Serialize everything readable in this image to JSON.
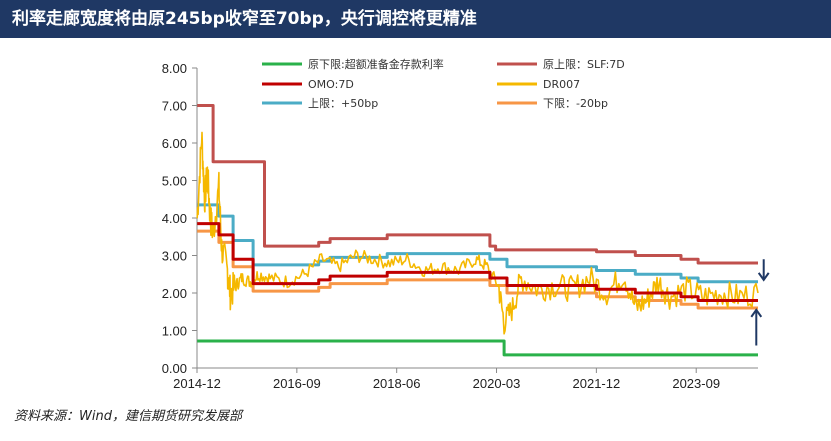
{
  "page": {
    "title": "利率走廊宽度将由原245bp收窄至70bp，央行调控将更精准",
    "source": "资料来源：Wind，建信期货研究发展部"
  },
  "chart_data": {
    "type": "line",
    "title": "利率走廊宽度将由原245bp收窄至70bp，央行调控将更精准",
    "xlabel": "",
    "ylabel": "",
    "ylim": [
      0,
      8
    ],
    "xlim": [
      2014.917,
      2024.75
    ],
    "yticks": [
      "0.00",
      "1.00",
      "2.00",
      "3.00",
      "4.00",
      "5.00",
      "6.00",
      "7.00",
      "8.00"
    ],
    "xticks": [
      {
        "label": "2014-12",
        "x": 2014.917
      },
      {
        "label": "2016-09",
        "x": 2016.667
      },
      {
        "label": "2018-06",
        "x": 2018.417
      },
      {
        "label": "2020-03",
        "x": 2020.167
      },
      {
        "label": "2021-12",
        "x": 2021.917
      },
      {
        "label": "2023-09",
        "x": 2023.667
      }
    ],
    "grid": false,
    "legend_position": "top",
    "series": [
      {
        "name": "原下限:超额准备金存款利率",
        "color": "#2ab14a",
        "x": [
          2014.92,
          2020.3,
          2020.3,
          2024.75
        ],
        "y": [
          0.72,
          0.72,
          0.35,
          0.35
        ]
      },
      {
        "name": "原上限：SLF:7D",
        "color": "#c0504d",
        "x": [
          2014.92,
          2015.2,
          2015.2,
          2015.55,
          2015.55,
          2016.1,
          2016.1,
          2017.05,
          2017.05,
          2017.25,
          2017.25,
          2018.25,
          2018.25,
          2020.05,
          2020.05,
          2020.15,
          2020.15,
          2021.92,
          2021.92,
          2022.6,
          2022.6,
          2023.4,
          2023.4,
          2023.7,
          2023.7,
          2024.75
        ],
        "y": [
          7.0,
          7.0,
          5.5,
          5.5,
          5.5,
          5.5,
          3.25,
          3.25,
          3.35,
          3.35,
          3.45,
          3.45,
          3.55,
          3.55,
          3.25,
          3.25,
          3.15,
          3.15,
          3.1,
          3.1,
          3.0,
          3.0,
          2.9,
          2.9,
          2.8,
          2.8
        ]
      },
      {
        "name": "OMO:7D",
        "color": "#c00000",
        "x": [
          2014.92,
          2015.3,
          2015.3,
          2015.55,
          2015.55,
          2015.9,
          2015.9,
          2017.05,
          2017.05,
          2017.25,
          2017.25,
          2018.25,
          2018.25,
          2020.05,
          2020.05,
          2020.35,
          2020.35,
          2021.92,
          2021.92,
          2022.6,
          2022.6,
          2023.4,
          2023.4,
          2023.7,
          2023.7,
          2024.75
        ],
        "y": [
          3.85,
          3.85,
          3.55,
          3.55,
          2.9,
          2.9,
          2.25,
          2.25,
          2.35,
          2.35,
          2.45,
          2.45,
          2.55,
          2.55,
          2.4,
          2.4,
          2.2,
          2.2,
          2.1,
          2.1,
          2.0,
          2.0,
          1.9,
          1.9,
          1.8,
          1.8
        ]
      },
      {
        "name": "DR007",
        "color": "#f5b800",
        "x": [
          2014.92,
          2015.0,
          2015.05,
          2015.1,
          2015.15,
          2015.2,
          2015.3,
          2015.35,
          2015.45,
          2015.5,
          2015.6,
          2015.7,
          2015.85,
          2016.0,
          2016.2,
          2016.5,
          2016.8,
          2017.1,
          2017.4,
          2017.7,
          2018.0,
          2018.3,
          2018.6,
          2018.9,
          2019.2,
          2019.5,
          2019.8,
          2020.0,
          2020.2,
          2020.3,
          2020.45,
          2020.6,
          2020.9,
          2021.2,
          2021.5,
          2021.8,
          2022.1,
          2022.4,
          2022.6,
          2022.8,
          2023.0,
          2023.2,
          2023.5,
          2023.8,
          2024.1,
          2024.4,
          2024.75
        ],
        "y": [
          4.0,
          6.2,
          4.5,
          5.2,
          4.0,
          3.6,
          4.8,
          3.2,
          2.6,
          2.0,
          2.2,
          2.4,
          2.3,
          2.5,
          2.4,
          2.3,
          2.5,
          2.9,
          2.7,
          3.0,
          2.9,
          2.8,
          2.9,
          2.6,
          2.7,
          2.6,
          2.9,
          2.7,
          2.2,
          1.2,
          1.6,
          2.4,
          2.1,
          2.2,
          2.1,
          2.4,
          2.0,
          2.5,
          1.6,
          1.8,
          2.3,
          1.9,
          2.1,
          1.9,
          2.0,
          1.9,
          2.0
        ]
      },
      {
        "name": "上限：+50bp",
        "color": "#4bacc6",
        "x": [
          2014.92,
          2015.3,
          2015.3,
          2015.55,
          2015.55,
          2015.9,
          2015.9,
          2017.05,
          2017.05,
          2017.25,
          2017.25,
          2018.25,
          2018.25,
          2020.05,
          2020.05,
          2020.35,
          2020.35,
          2021.92,
          2021.92,
          2022.6,
          2022.6,
          2023.4,
          2023.4,
          2023.7,
          2023.7,
          2024.75
        ],
        "y": [
          4.35,
          4.35,
          4.05,
          4.05,
          3.4,
          3.4,
          2.75,
          2.75,
          2.85,
          2.85,
          2.95,
          2.95,
          3.05,
          3.05,
          2.9,
          2.9,
          2.7,
          2.7,
          2.6,
          2.6,
          2.5,
          2.5,
          2.4,
          2.4,
          2.3,
          2.3
        ]
      },
      {
        "name": "下限：-20bp",
        "color": "#f79646",
        "x": [
          2014.92,
          2015.3,
          2015.3,
          2015.55,
          2015.55,
          2015.9,
          2015.9,
          2017.05,
          2017.05,
          2017.25,
          2017.25,
          2018.25,
          2018.25,
          2020.05,
          2020.05,
          2020.35,
          2020.35,
          2021.92,
          2021.92,
          2022.6,
          2022.6,
          2023.4,
          2023.4,
          2023.7,
          2023.7,
          2024.75
        ],
        "y": [
          3.65,
          3.65,
          3.35,
          3.35,
          2.7,
          2.7,
          2.05,
          2.05,
          2.15,
          2.15,
          2.25,
          2.25,
          2.35,
          2.35,
          2.2,
          2.2,
          2.0,
          2.0,
          1.9,
          1.9,
          1.8,
          1.8,
          1.7,
          1.7,
          1.6,
          1.6
        ]
      }
    ],
    "annotations": [
      {
        "type": "arrow-down",
        "x": 2024.85,
        "y_from": 2.9,
        "y_to": 2.35,
        "color": "#1f3864"
      },
      {
        "type": "arrow-up",
        "x": 2024.72,
        "y_from": 0.6,
        "y_to": 1.55,
        "color": "#1f3864"
      }
    ]
  }
}
